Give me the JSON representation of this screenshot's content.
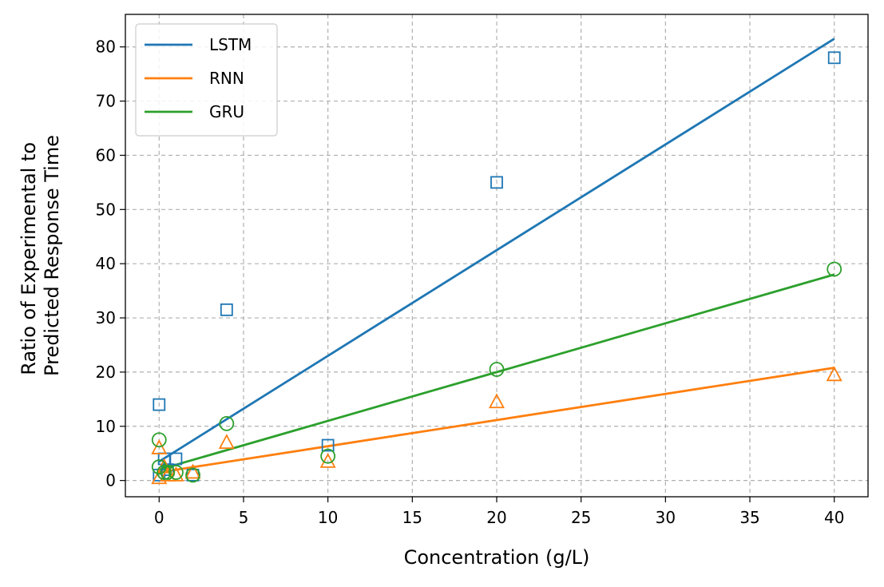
{
  "chart_data": {
    "type": "scatter",
    "xlabel": "Concentration (g/L)",
    "ylabel_lines": [
      "Ratio of Experimental to",
      "Predicted Response Time"
    ],
    "xlim": [
      -2,
      42
    ],
    "ylim": [
      -3,
      86
    ],
    "xticks": [
      0,
      5,
      10,
      15,
      20,
      25,
      30,
      35,
      40
    ],
    "yticks": [
      0,
      10,
      20,
      30,
      40,
      50,
      60,
      70,
      80
    ],
    "grid": true,
    "legend_position": "top-left",
    "series": [
      {
        "name": "LSTM",
        "color": "#1f77b4",
        "marker": "square",
        "points": [
          {
            "x": 0,
            "y": 14
          },
          {
            "x": 0,
            "y": 1
          },
          {
            "x": 0.3,
            "y": 4
          },
          {
            "x": 0.5,
            "y": 2
          },
          {
            "x": 1,
            "y": 4
          },
          {
            "x": 2,
            "y": 1
          },
          {
            "x": 4,
            "y": 31.5
          },
          {
            "x": 10,
            "y": 6.5
          },
          {
            "x": 20,
            "y": 55
          },
          {
            "x": 40,
            "y": 78
          }
        ],
        "fit_line": {
          "x": [
            0,
            40
          ],
          "y": [
            3.5,
            81.5
          ]
        }
      },
      {
        "name": "RNN",
        "color": "#ff7f0e",
        "marker": "triangle",
        "points": [
          {
            "x": 0,
            "y": 6
          },
          {
            "x": 0,
            "y": 0.5
          },
          {
            "x": 0.3,
            "y": 2.5
          },
          {
            "x": 0.5,
            "y": 1
          },
          {
            "x": 1,
            "y": 1
          },
          {
            "x": 2,
            "y": 1.5
          },
          {
            "x": 4,
            "y": 7
          },
          {
            "x": 10,
            "y": 3.5
          },
          {
            "x": 20,
            "y": 14.5
          },
          {
            "x": 40,
            "y": 19.5
          }
        ],
        "fit_line": {
          "x": [
            0,
            40
          ],
          "y": [
            1.5,
            20.8
          ]
        }
      },
      {
        "name": "GRU",
        "color": "#2ca02c",
        "marker": "circle",
        "points": [
          {
            "x": 0,
            "y": 7.5
          },
          {
            "x": 0,
            "y": 2.5
          },
          {
            "x": 0.3,
            "y": 1.5
          },
          {
            "x": 0.5,
            "y": 1.5
          },
          {
            "x": 1,
            "y": 1.5
          },
          {
            "x": 2,
            "y": 1
          },
          {
            "x": 4,
            "y": 10.5
          },
          {
            "x": 10,
            "y": 4.5
          },
          {
            "x": 20,
            "y": 20.5
          },
          {
            "x": 40,
            "y": 39
          }
        ],
        "fit_line": {
          "x": [
            0,
            40
          ],
          "y": [
            2,
            38
          ]
        }
      }
    ]
  }
}
